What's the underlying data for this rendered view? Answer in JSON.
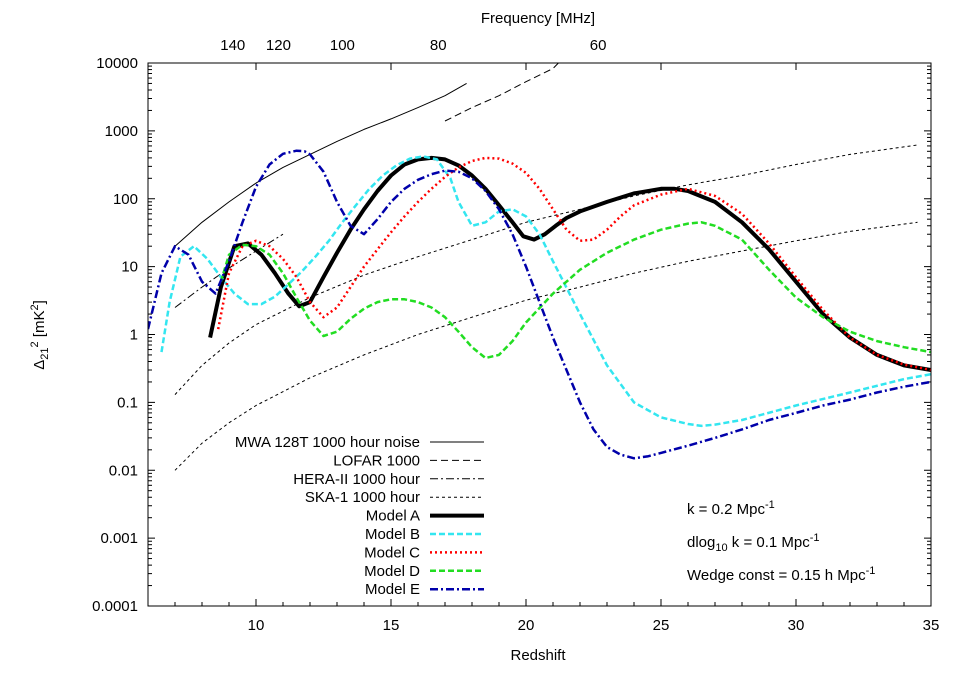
{
  "chart_data": {
    "type": "line",
    "xlabel": "Redshift",
    "ylabel": "Δ21² [mK²]",
    "x2label": "Frequency [MHz]",
    "xlim": [
      6,
      35
    ],
    "ylim": [
      0.0001,
      10000
    ],
    "yscale": "log",
    "x_ticks": [
      10,
      15,
      20,
      25,
      30,
      35
    ],
    "y_tick_labels": [
      "0.0001",
      "0.001",
      "0.01",
      "0.1",
      "1",
      "10",
      "100",
      "1000",
      "10000"
    ],
    "top_ticks": [
      {
        "label": "140",
        "z": 9.14
      },
      {
        "label": "120",
        "z": 10.83
      },
      {
        "label": "100",
        "z": 13.2
      },
      {
        "label": "80",
        "z": 16.75
      },
      {
        "label": "60",
        "z": 22.67
      }
    ],
    "legend_placement": "bottom-left",
    "annotations": [
      {
        "base": "k = 0.2 Mpc",
        "sup": "-1"
      },
      {
        "pre": "dlog",
        "sub": "10",
        "mid": " k = 0.1 Mpc",
        "sup": "-1"
      },
      {
        "base": "Wedge const = 0.15 h Mpc",
        "sup": "-1"
      }
    ],
    "series": [
      {
        "name": "MWA 128T 1000 hour noise",
        "color": "#000000",
        "width": 1,
        "dash": "",
        "x": [
          7,
          8,
          9,
          10,
          11,
          12,
          13,
          14,
          15,
          16,
          17,
          17.8
        ],
        "y": [
          20,
          45,
          90,
          170,
          290,
          450,
          700,
          1050,
          1500,
          2200,
          3300,
          5000
        ]
      },
      {
        "name": "LOFAR 1000",
        "color": "#000000",
        "width": 1,
        "dash": "7,4",
        "x": [
          17,
          18,
          19,
          20,
          21,
          21.2
        ],
        "y": [
          1400,
          2200,
          3300,
          5300,
          8300,
          10000
        ]
      },
      {
        "name": "HERA-II 1000 hour",
        "color": "#000000",
        "width": 1,
        "dash": "8,3,2,3",
        "x": [
          7,
          8,
          9,
          10,
          11
        ],
        "y": [
          2.5,
          5,
          9.5,
          17,
          30
        ]
      },
      {
        "name": "SKA-1 1000 hour",
        "color": "#000000",
        "width": 1,
        "dash": "3,3",
        "x": [
          7,
          8,
          9,
          10,
          12,
          14,
          16,
          18,
          20,
          22,
          24,
          26,
          28,
          30,
          32,
          34.5
        ],
        "y": [
          0.13,
          0.35,
          0.75,
          1.4,
          3.5,
          7.5,
          14,
          25,
          45,
          70,
          110,
          160,
          220,
          320,
          450,
          620
        ]
      },
      {
        "name": "SKA-1 1000 hour",
        "color": "#000000",
        "width": 1,
        "dash": "3,3",
        "x": [
          7,
          8,
          9,
          10,
          12,
          14,
          16,
          18,
          20,
          22,
          24,
          26,
          28,
          30,
          32,
          34.5
        ],
        "y": [
          0.01,
          0.025,
          0.05,
          0.09,
          0.23,
          0.5,
          1.0,
          1.8,
          3.2,
          5,
          8,
          12,
          17,
          24,
          33,
          45
        ]
      },
      {
        "name": "Model A",
        "color": "#000000",
        "width": 4,
        "dash": "",
        "x": [
          8.3,
          8.7,
          9.2,
          9.7,
          10.2,
          10.7,
          11.2,
          11.6,
          12.0,
          12.5,
          13,
          13.5,
          14,
          14.5,
          15,
          15.5,
          16,
          16.5,
          17,
          17.5,
          18,
          18.5,
          19,
          19.5,
          19.9,
          20.3,
          20.7,
          21.1,
          21.5,
          22,
          23,
          24,
          25,
          25.5,
          26,
          27,
          28,
          29,
          30,
          31,
          32,
          33,
          34,
          35
        ],
        "y": [
          0.9,
          5,
          20,
          22,
          15,
          8,
          4,
          2.6,
          3,
          7,
          16,
          35,
          70,
          130,
          220,
          320,
          380,
          400,
          380,
          310,
          220,
          140,
          80,
          45,
          28,
          25,
          30,
          40,
          52,
          65,
          90,
          120,
          140,
          140,
          130,
          90,
          45,
          18,
          6,
          2,
          0.9,
          0.5,
          0.35,
          0.3
        ]
      },
      {
        "name": "Model B",
        "color": "#33e6f0",
        "width": 2.5,
        "dash": "6,3",
        "x": [
          6.5,
          6.8,
          7.2,
          7.7,
          8.2,
          8.7,
          9.2,
          9.7,
          10.2,
          10.7,
          11.2,
          11.7,
          12.2,
          12.7,
          13.2,
          13.7,
          14.2,
          14.7,
          15.2,
          15.7,
          16.2,
          16.7,
          17.2,
          17.5,
          18.0,
          18.5,
          19.0,
          19.5,
          20,
          20.5,
          21,
          22,
          23,
          24,
          25,
          26,
          26.5,
          27,
          28,
          30,
          32,
          34,
          35
        ],
        "y": [
          0.55,
          3,
          14,
          20,
          13,
          7,
          4,
          2.8,
          2.8,
          3.6,
          5.5,
          8.5,
          14,
          24,
          45,
          80,
          140,
          220,
          310,
          390,
          420,
          380,
          200,
          90,
          40,
          45,
          65,
          70,
          55,
          30,
          12,
          2,
          0.35,
          0.1,
          0.06,
          0.048,
          0.045,
          0.047,
          0.055,
          0.09,
          0.14,
          0.22,
          0.26
        ]
      },
      {
        "name": "Model C",
        "color": "#ff0000",
        "width": 2.5,
        "dash": "2,3",
        "x": [
          8.6,
          9.0,
          9.5,
          10.0,
          10.5,
          11,
          11.5,
          12,
          12.5,
          13,
          13.5,
          14,
          14.5,
          15,
          15.5,
          16,
          16.5,
          17,
          17.5,
          18,
          18.5,
          19,
          19.5,
          20,
          20.5,
          21,
          21.5,
          22,
          22.5,
          23,
          23.5,
          24,
          25,
          26,
          27,
          28,
          29,
          30,
          31,
          32,
          33,
          34,
          35
        ],
        "y": [
          1.2,
          8,
          20,
          24,
          20,
          13,
          7,
          3,
          1.8,
          2.5,
          5,
          10,
          18,
          32,
          55,
          90,
          140,
          210,
          290,
          360,
          400,
          390,
          330,
          240,
          140,
          70,
          35,
          24,
          25,
          35,
          55,
          80,
          115,
          140,
          110,
          60,
          22,
          7,
          2.3,
          0.9,
          0.5,
          0.36,
          0.3
        ]
      },
      {
        "name": "Model D",
        "color": "#22dd22",
        "width": 2.5,
        "dash": "6,3",
        "x": [
          8.7,
          9.0,
          9.5,
          10,
          10.5,
          11,
          11.5,
          12,
          12.5,
          13,
          13.5,
          14,
          14.5,
          15,
          15.5,
          16,
          16.5,
          17,
          17.5,
          18,
          18.5,
          19,
          19.5,
          20,
          21,
          22,
          23,
          24,
          25,
          26,
          26.5,
          27,
          28,
          29,
          30,
          31,
          32,
          33,
          34,
          35
        ],
        "y": [
          6,
          15,
          21,
          20,
          15,
          8,
          3.5,
          1.6,
          0.95,
          1.1,
          1.7,
          2.4,
          3,
          3.3,
          3.3,
          3,
          2.5,
          1.8,
          1.1,
          0.65,
          0.45,
          0.5,
          0.8,
          1.5,
          4,
          9,
          16,
          25,
          35,
          43,
          45,
          40,
          25,
          9,
          3.5,
          1.8,
          1.1,
          0.8,
          0.65,
          0.55
        ]
      },
      {
        "name": "Model E",
        "color": "#0000aa",
        "width": 2.5,
        "dash": "8,3,2,3",
        "x": [
          6,
          6.5,
          7,
          7.5,
          8,
          8.5,
          9,
          9.5,
          10,
          10.5,
          11,
          11.5,
          11.8,
          12,
          12.5,
          13,
          13.5,
          14,
          14.5,
          15,
          15.5,
          16,
          16.5,
          17,
          17.5,
          18,
          18.5,
          19,
          19.5,
          20,
          20.5,
          21,
          21.5,
          22,
          22.5,
          23,
          23.5,
          24,
          24.5,
          25,
          26,
          27,
          28,
          29,
          30,
          31,
          32,
          33,
          34,
          35
        ],
        "y": [
          1.2,
          8,
          20,
          15,
          6,
          4,
          12,
          45,
          150,
          320,
          460,
          510,
          500,
          450,
          250,
          90,
          40,
          30,
          50,
          90,
          140,
          190,
          230,
          260,
          250,
          200,
          130,
          70,
          30,
          10,
          3,
          0.9,
          0.3,
          0.1,
          0.04,
          0.022,
          0.017,
          0.015,
          0.016,
          0.018,
          0.023,
          0.03,
          0.04,
          0.055,
          0.07,
          0.09,
          0.11,
          0.14,
          0.17,
          0.2
        ]
      }
    ]
  }
}
